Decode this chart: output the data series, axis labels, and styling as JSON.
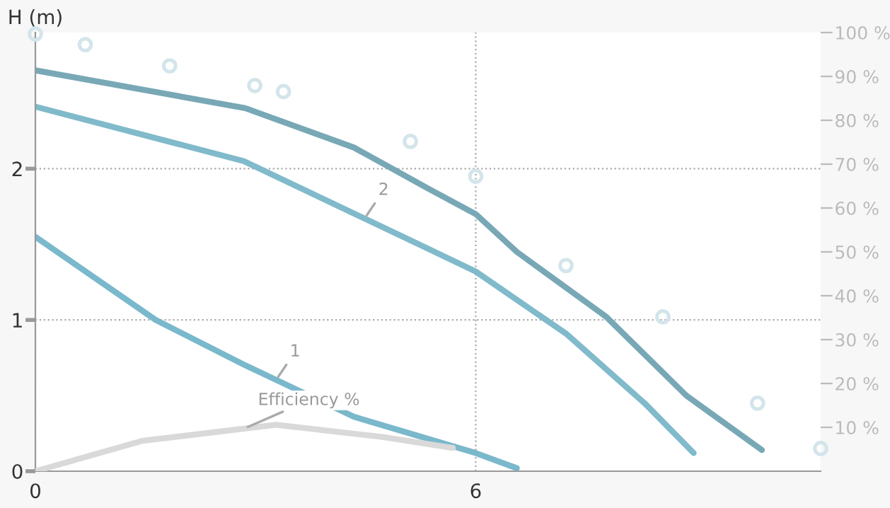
{
  "chart_data": {
    "type": "line",
    "ylabel": "H (m)",
    "xlim": [
      0,
      10.7
    ],
    "xticks": [
      0,
      6
    ],
    "ylim": [
      0,
      2.9
    ],
    "yticks": [
      0,
      1,
      2
    ],
    "y2lim": [
      0,
      100
    ],
    "y2ticks": [
      {
        "value": 10,
        "label": "10 %"
      },
      {
        "value": 20,
        "label": "20 %"
      },
      {
        "value": 30,
        "label": "30 %"
      },
      {
        "value": 40,
        "label": "40 %"
      },
      {
        "value": 50,
        "label": "50 %"
      },
      {
        "value": 60,
        "label": "60 %"
      },
      {
        "value": 70,
        "label": "70 %"
      },
      {
        "value": 80,
        "label": "80 %"
      },
      {
        "value": 90,
        "label": "90 %"
      },
      {
        "value": 100,
        "label": "100 %"
      }
    ],
    "grid": true,
    "line_style": "solid",
    "series": [
      {
        "type": "scatter",
        "marker": "circle",
        "color": "#d3e5eb",
        "x": [
          0,
          0.68,
          1.83,
          2.99,
          3.38,
          5.11,
          6,
          7.23,
          8.55,
          9.84,
          10.7
        ],
        "values": [
          2.89,
          2.82,
          2.68,
          2.55,
          2.51,
          2.18,
          1.95,
          1.36,
          1.02,
          0.45,
          0.15
        ]
      },
      {
        "color": "#78a8b6",
        "x": [
          0,
          2.86,
          4.34,
          5.31,
          6,
          6.56,
          7.78,
          8.87,
          9.9
        ],
        "values": [
          2.65,
          2.4,
          2.14,
          1.88,
          1.7,
          1.45,
          1.02,
          0.5,
          0.14
        ]
      },
      {
        "name": "2",
        "color": "#80bacb",
        "x": [
          0,
          2.84,
          5.31,
          6,
          7.23,
          8.3,
          8.97
        ],
        "values": [
          2.41,
          2.05,
          1.48,
          1.32,
          0.91,
          0.45,
          0.12
        ]
      },
      {
        "name": "1",
        "color": "#7ab8cc",
        "x": [
          0,
          1.64,
          2.86,
          4.34,
          6,
          6.56
        ],
        "values": [
          1.55,
          1.0,
          0.7,
          0.36,
          0.12,
          0.02
        ]
      },
      {
        "name": "Efficiency %",
        "axis": "y2",
        "color": "#d9d9d9",
        "x": [
          0,
          1.45,
          3.28,
          4.73,
          5.69
        ],
        "values": [
          0,
          6.9,
          10.6,
          7.8,
          5.3
        ]
      }
    ]
  }
}
